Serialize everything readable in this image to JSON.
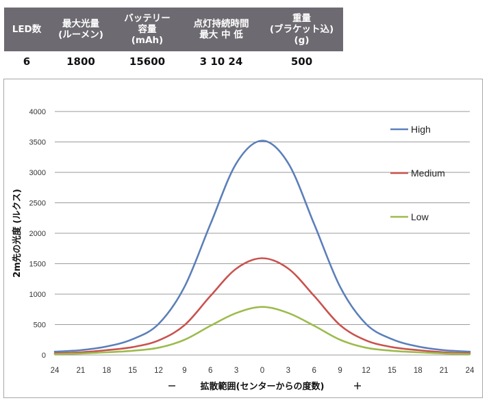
{
  "spec_table": {
    "headers": [
      "LED数",
      "最大光量\n(ルーメン)",
      "バッテリー\n容量\n(mAh)",
      "点灯持続時間\n最大  中  低",
      "重量\n(ブラケット込)\n(g)"
    ],
    "values": [
      "6",
      "1800",
      "15600",
      "3  10  24",
      "500"
    ]
  },
  "colors": {
    "header_bg": "#6e6a71",
    "high": "#5b7fba",
    "medium": "#c9524e",
    "low": "#9cbb4c",
    "grid": "#9a9a9a"
  },
  "chart_data": {
    "type": "line",
    "title": "",
    "ylabel": "2m先の光度 (ルクス)",
    "xlabel": "拡散範囲(センターからの度数)",
    "xlabel_left": "－",
    "xlabel_right": "＋",
    "x_tick_labels": [
      "24",
      "21",
      "18",
      "15",
      "12",
      "9",
      "6",
      "3",
      "0",
      "3",
      "6",
      "9",
      "12",
      "15",
      "18",
      "21",
      "24"
    ],
    "x": [
      -24,
      -21,
      -18,
      -15,
      -12,
      -9,
      -6,
      -3,
      0,
      3,
      6,
      9,
      12,
      15,
      18,
      21,
      24
    ],
    "xlim": [
      -24,
      24
    ],
    "ylim": [
      0,
      4000
    ],
    "y_ticks": [
      0,
      500,
      1000,
      1500,
      2000,
      2500,
      3000,
      3500,
      4000
    ],
    "grid": "horizontal",
    "legend_position": "right",
    "series": [
      {
        "name": "High",
        "color": "#5b7fba",
        "values": [
          55,
          80,
          140,
          260,
          510,
          1120,
          2150,
          3150,
          3520,
          3150,
          2150,
          1120,
          510,
          260,
          140,
          80,
          55
        ]
      },
      {
        "name": "Medium",
        "color": "#c9524e",
        "values": [
          30,
          45,
          80,
          130,
          240,
          490,
          970,
          1420,
          1590,
          1420,
          970,
          490,
          240,
          130,
          80,
          45,
          30
        ]
      },
      {
        "name": "Low",
        "color": "#9cbb4c",
        "values": [
          15,
          25,
          45,
          70,
          120,
          250,
          480,
          690,
          790,
          690,
          480,
          250,
          120,
          70,
          45,
          25,
          15
        ]
      }
    ]
  }
}
